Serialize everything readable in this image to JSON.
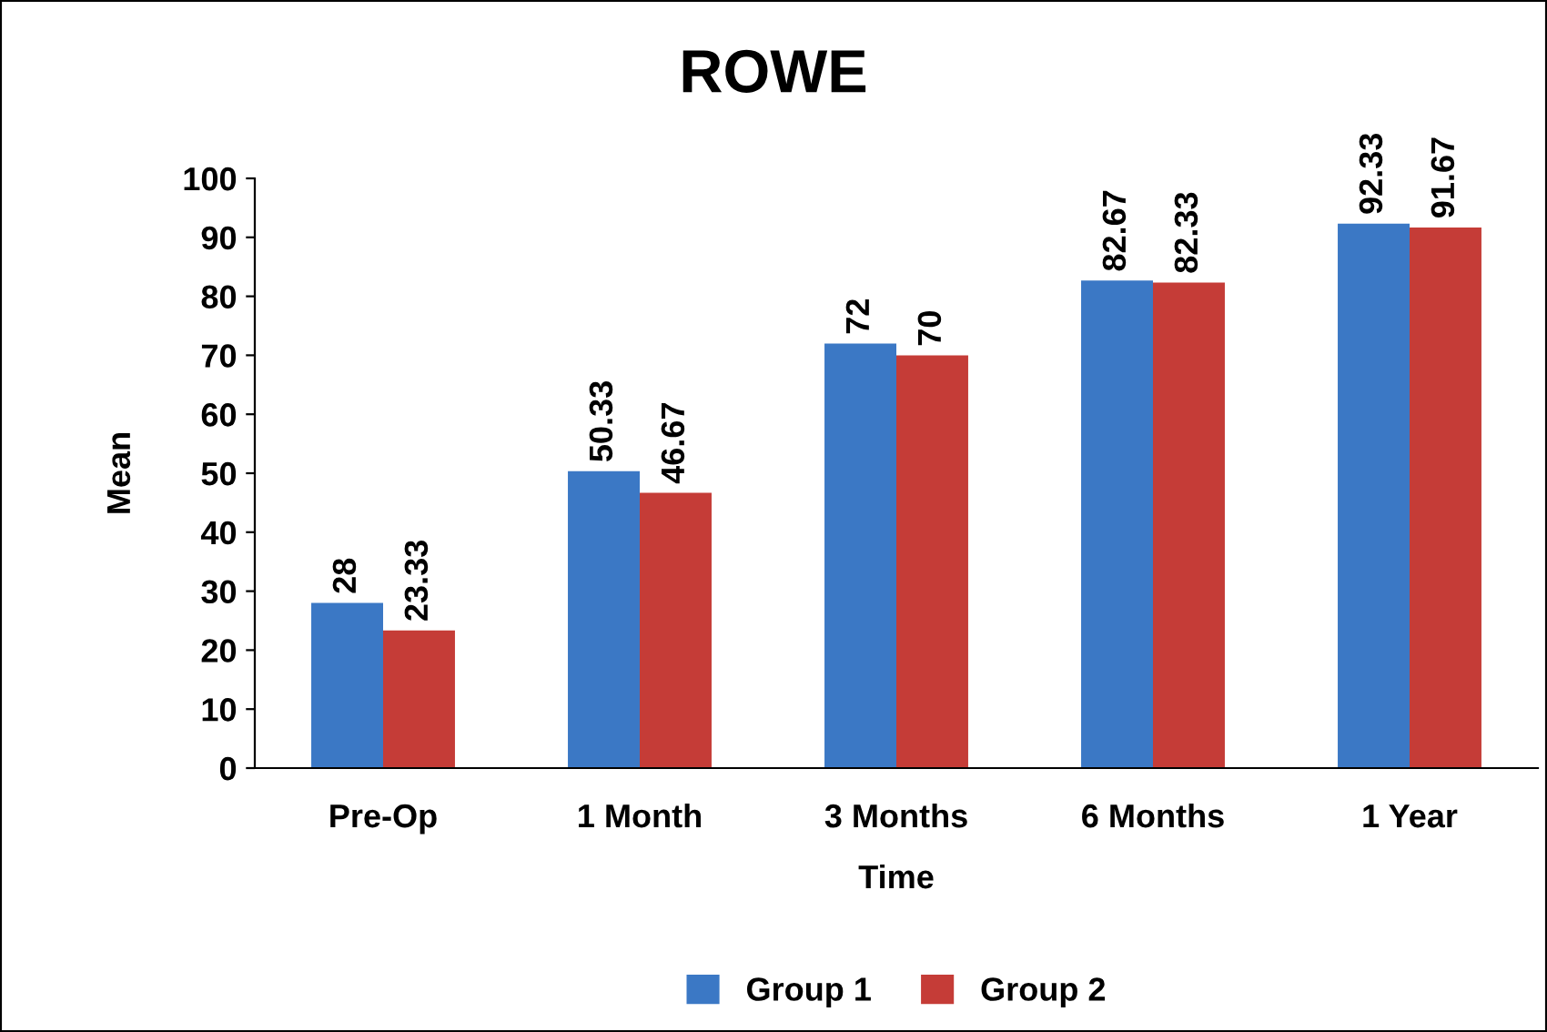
{
  "chart_data": {
    "type": "bar",
    "title": "ROWE",
    "xlabel": "Time",
    "ylabel": "Mean",
    "categories": [
      "Pre-Op",
      "1 Month",
      "3 Months",
      "6 Months",
      "1 Year"
    ],
    "series": [
      {
        "name": "Group 1",
        "color": "#3b78c5",
        "values": [
          28,
          50.33,
          72,
          82.67,
          92.33
        ]
      },
      {
        "name": "Group 2",
        "color": "#c53c37",
        "values": [
          23.33,
          46.67,
          70,
          82.33,
          91.67
        ]
      }
    ],
    "ylim": [
      0,
      100
    ],
    "yticks": [
      0,
      10,
      20,
      30,
      40,
      50,
      60,
      70,
      80,
      90,
      100
    ],
    "data_labels": true,
    "legend": "bottom",
    "grid": false
  }
}
